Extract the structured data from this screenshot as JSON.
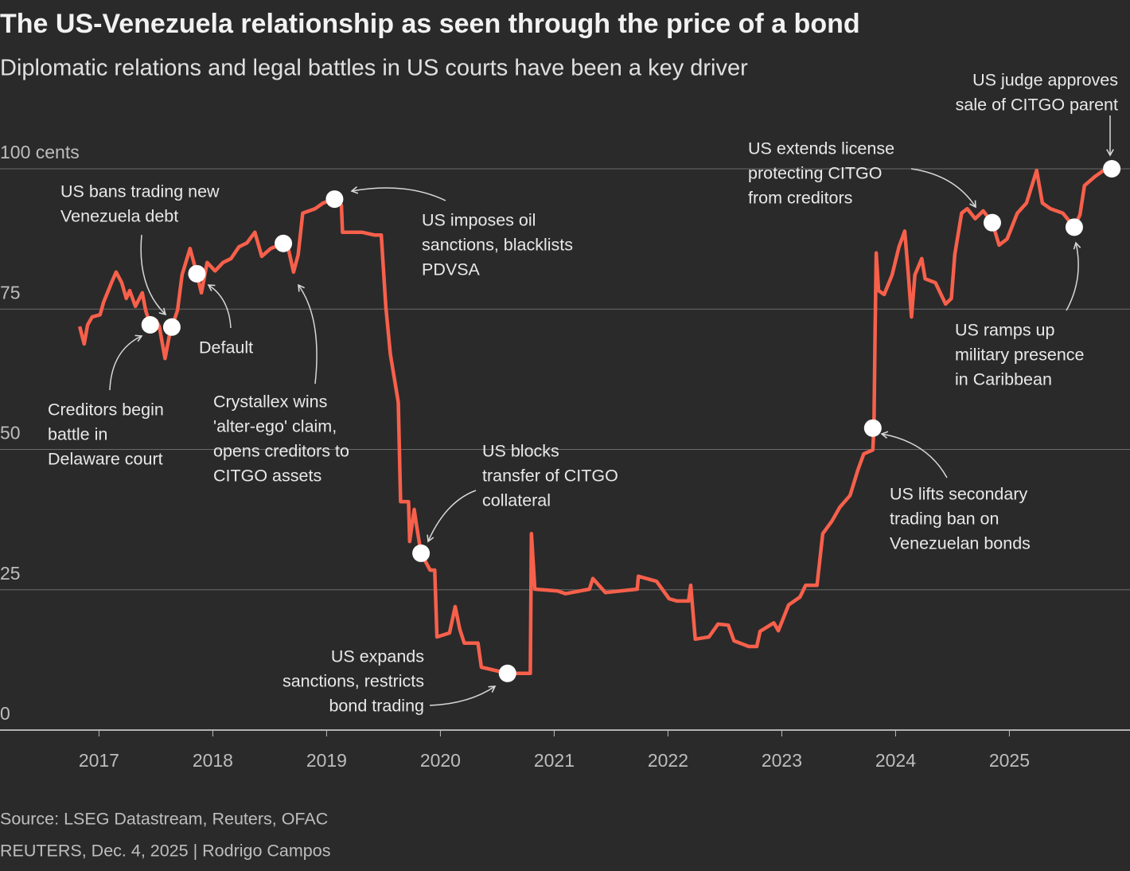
{
  "chart_data": {
    "type": "line",
    "title": "The US-Venezuela relationship as seen through the price of a bond",
    "subtitle": "Diplomatic relations and legal battles in US courts have been a key driver",
    "source": "Source: LSEG Datastream, Reuters, OFAC",
    "credit": "REUTERS, Dec. 4, 2025 | Rodrigo Campos",
    "color": "#f7604b",
    "grid": true,
    "xlim": [
      2016.13,
      2026.06
    ],
    "ylim": [
      0,
      100
    ],
    "xticks": [
      2017,
      2018,
      2019,
      2020,
      2021,
      2022,
      2023,
      2024,
      2025
    ],
    "yticks": [
      0,
      25,
      50,
      75,
      {
        "value": 100,
        "label": "100 cents"
      }
    ],
    "x": [
      2016.83,
      2016.87,
      2016.9,
      2016.94,
      2017.01,
      2017.04,
      2017.11,
      2017.15,
      2017.2,
      2017.24,
      2017.27,
      2017.32,
      2017.38,
      2017.41,
      2017.45,
      2017.5,
      2017.53,
      2017.58,
      2017.62,
      2017.64,
      2017.69,
      2017.73,
      2017.8,
      2017.86,
      2017.9,
      2017.95,
      2018.02,
      2018.09,
      2018.16,
      2018.23,
      2018.3,
      2018.37,
      2018.43,
      2018.51,
      2018.62,
      2018.66,
      2018.71,
      2018.75,
      2018.79,
      2018.9,
      2018.97,
      2019.07,
      2019.13,
      2019.14,
      2019.31,
      2019.42,
      2019.48,
      2019.52,
      2019.56,
      2019.63,
      2019.65,
      2019.72,
      2019.73,
      2019.77,
      2019.79,
      2019.83,
      2019.91,
      2019.95,
      2019.97,
      2020.08,
      2020.13,
      2020.17,
      2020.21,
      2020.33,
      2020.36,
      2020.59,
      2020.79,
      2020.8,
      2020.83,
      2021.03,
      2021.1,
      2021.31,
      2021.34,
      2021.45,
      2021.73,
      2021.74,
      2021.9,
      2022.01,
      2022.08,
      2022.18,
      2022.2,
      2022.24,
      2022.36,
      2022.44,
      2022.53,
      2022.58,
      2022.71,
      2022.78,
      2022.81,
      2022.93,
      2022.97,
      2023.06,
      2023.16,
      2023.21,
      2023.31,
      2023.36,
      2023.44,
      2023.51,
      2023.6,
      2023.67,
      2023.72,
      2023.8,
      2023.81,
      2023.82,
      2023.83,
      2023.85,
      2023.9,
      2023.97,
      2024.03,
      2024.08,
      2024.11,
      2024.14,
      2024.17,
      2024.23,
      2024.26,
      2024.35,
      2024.44,
      2024.49,
      2024.52,
      2024.58,
      2024.63,
      2024.7,
      2024.77,
      2024.85,
      2024.91,
      2024.98,
      2025.07,
      2025.15,
      2025.24,
      2025.29,
      2025.36,
      2025.47,
      2025.57,
      2025.62,
      2025.66,
      2025.75,
      2025.82,
      2025.9
    ],
    "values": [
      71.9,
      68.8,
      72.2,
      73.6,
      74.0,
      76.2,
      79.7,
      81.6,
      79.7,
      76.9,
      78.3,
      75.5,
      77.9,
      74.8,
      72.2,
      73.0,
      71.9,
      66.2,
      70.5,
      71.8,
      74.8,
      81.1,
      85.8,
      81.3,
      77.9,
      83.3,
      81.8,
      83.3,
      84.0,
      86.1,
      86.8,
      88.7,
      84.4,
      85.8,
      86.7,
      86.1,
      81.6,
      84.7,
      92.1,
      92.9,
      93.9,
      94.6,
      93.5,
      88.7,
      88.7,
      88.2,
      88.2,
      75.5,
      67.0,
      58.4,
      40.7,
      40.7,
      33.6,
      39.3,
      36.5,
      31.5,
      28.5,
      28.5,
      16.6,
      17.3,
      22.0,
      18.0,
      15.5,
      15.5,
      11.2,
      10.1,
      10.1,
      35.0,
      25.1,
      24.8,
      24.3,
      25.1,
      27.0,
      24.5,
      25.1,
      27.4,
      26.5,
      23.4,
      23.0,
      23.0,
      25.8,
      16.2,
      16.6,
      18.9,
      18.7,
      15.9,
      14.9,
      14.9,
      17.6,
      19.1,
      17.7,
      22.3,
      23.7,
      25.8,
      25.8,
      35.0,
      37.2,
      39.7,
      41.8,
      46.4,
      49.2,
      49.9,
      53.8,
      71.2,
      85.0,
      78.3,
      77.6,
      81.1,
      86.1,
      88.9,
      81.8,
      73.6,
      81.1,
      84.0,
      80.4,
      79.7,
      75.9,
      76.9,
      84.7,
      92.1,
      92.9,
      91.1,
      92.5,
      90.4,
      86.4,
      87.5,
      92.1,
      93.9,
      99.7,
      93.9,
      92.9,
      92.1,
      89.6,
      91.8,
      97.0,
      98.6,
      99.6,
      100.0
    ],
    "annotations": [
      {
        "lines": [
          "Creditors begin",
          "battle in",
          "Delaware court"
        ],
        "x": 2017.45,
        "y": 72.2
      },
      {
        "lines": [
          "US bans trading new",
          "Venezuela debt"
        ],
        "x": 2017.64,
        "y": 71.8
      },
      {
        "lines": [
          "Default"
        ],
        "x": 2017.86,
        "y": 81.3
      },
      {
        "lines": [
          "Crystallex wins",
          "'alter-ego' claim,",
          "opens creditors to",
          "CITGO assets"
        ],
        "x": 2018.62,
        "y": 86.7
      },
      {
        "lines": [
          "US imposes oil",
          "sanctions, blacklists",
          "PDVSA"
        ],
        "x": 2019.07,
        "y": 94.6
      },
      {
        "lines": [
          "US blocks",
          "transfer of CITGO",
          "collateral"
        ],
        "x": 2019.83,
        "y": 31.5
      },
      {
        "lines": [
          "US expands",
          "sanctions, restricts",
          "bond trading"
        ],
        "x": 2020.59,
        "y": 10.1
      },
      {
        "lines": [
          "US lifts secondary",
          "trading ban on",
          "Venezuelan bonds"
        ],
        "x": 2023.8,
        "y": 53.8
      },
      {
        "lines": [
          "US extends license",
          "protecting CITGO",
          "from creditors"
        ],
        "x": 2024.85,
        "y": 90.4
      },
      {
        "lines": [
          "US ramps up",
          "military presence",
          "in Caribbean"
        ],
        "x": 2025.57,
        "y": 89.6
      },
      {
        "lines": [
          "US judge approves",
          "sale of CITGO parent"
        ],
        "x": 2025.9,
        "y": 100.0
      }
    ]
  }
}
